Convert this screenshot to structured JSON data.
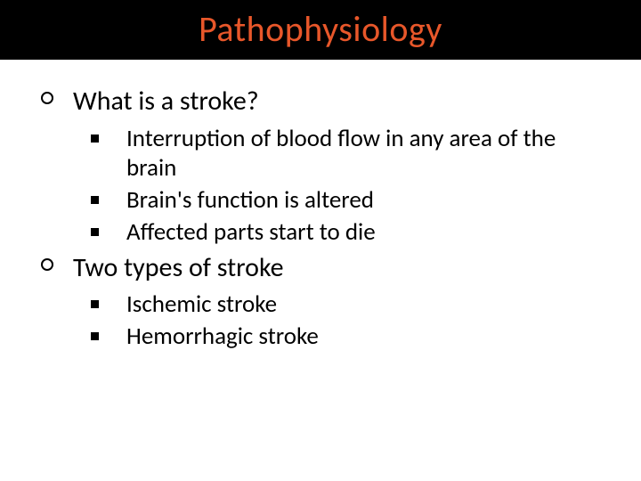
{
  "slide": {
    "title": "Pathophysiology",
    "title_color": "#e8572a",
    "title_bg_color": "#000000",
    "title_fontsize": 40,
    "body_bg_color": "#ffffff",
    "body_text_color": "#000000",
    "outer_fontsize": 30,
    "inner_fontsize": 27,
    "outer_bullet_type": "circle",
    "inner_bullet_type": "square",
    "items": [
      {
        "text": "What is a stroke?",
        "subitems": [
          "Interruption of blood flow in any area of the brain",
          "Brain's function is altered",
          "Affected parts start to die"
        ]
      },
      {
        "text": "Two types of stroke",
        "subitems": [
          "Ischemic stroke",
          "Hemorrhagic stroke"
        ]
      }
    ]
  }
}
